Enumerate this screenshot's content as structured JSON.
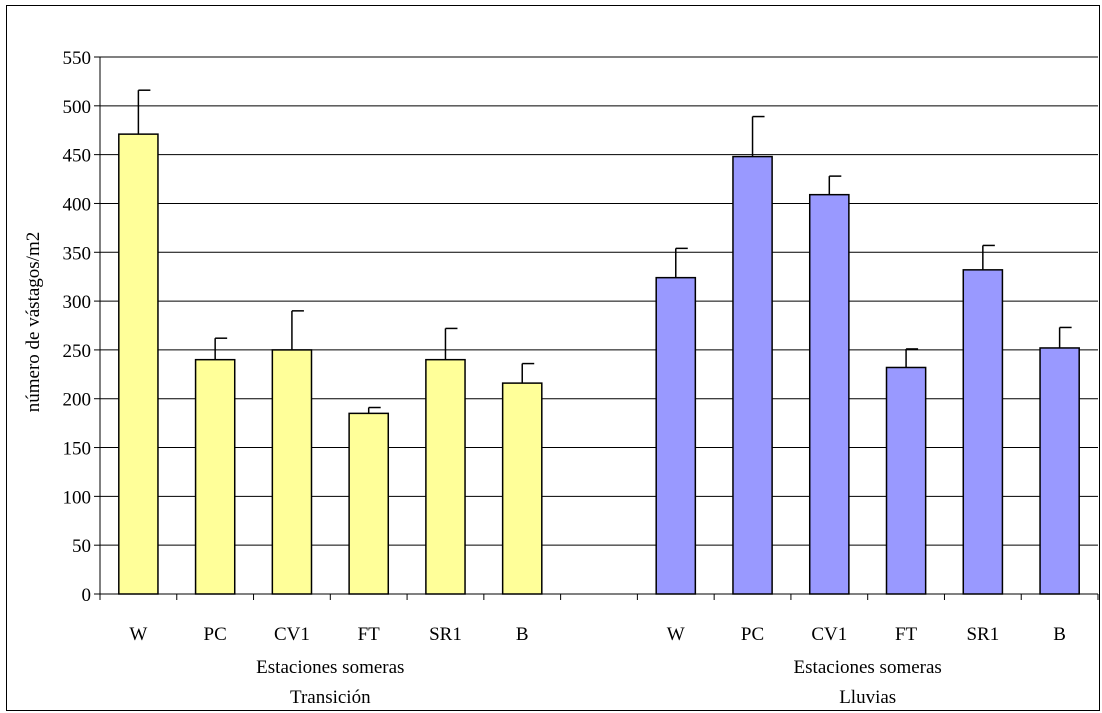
{
  "chart_data": {
    "type": "bar",
    "title": "",
    "ylabel": "número de vástagos/m2",
    "ylim": [
      0,
      550
    ],
    "ytick_step": 50,
    "grid": true,
    "legend": "none",
    "groups": [
      {
        "label_line1": "Estaciones someras",
        "label_line2": "Transición",
        "color": "#ffff99",
        "categories": [
          "W",
          "PC",
          "CV1",
          "FT",
          "SR1",
          "B"
        ],
        "values": [
          471,
          240,
          250,
          185,
          240,
          216
        ],
        "errors": [
          45,
          22,
          40,
          6,
          32,
          20
        ]
      },
      {
        "label_line1": "Estaciones someras",
        "label_line2": "Lluvias",
        "color": "#9999ff",
        "categories": [
          "W",
          "PC",
          "CV1",
          "FT",
          "SR1",
          "B"
        ],
        "values": [
          324,
          448,
          409,
          232,
          332,
          252
        ],
        "errors": [
          30,
          41,
          19,
          19,
          25,
          21
        ]
      }
    ]
  }
}
